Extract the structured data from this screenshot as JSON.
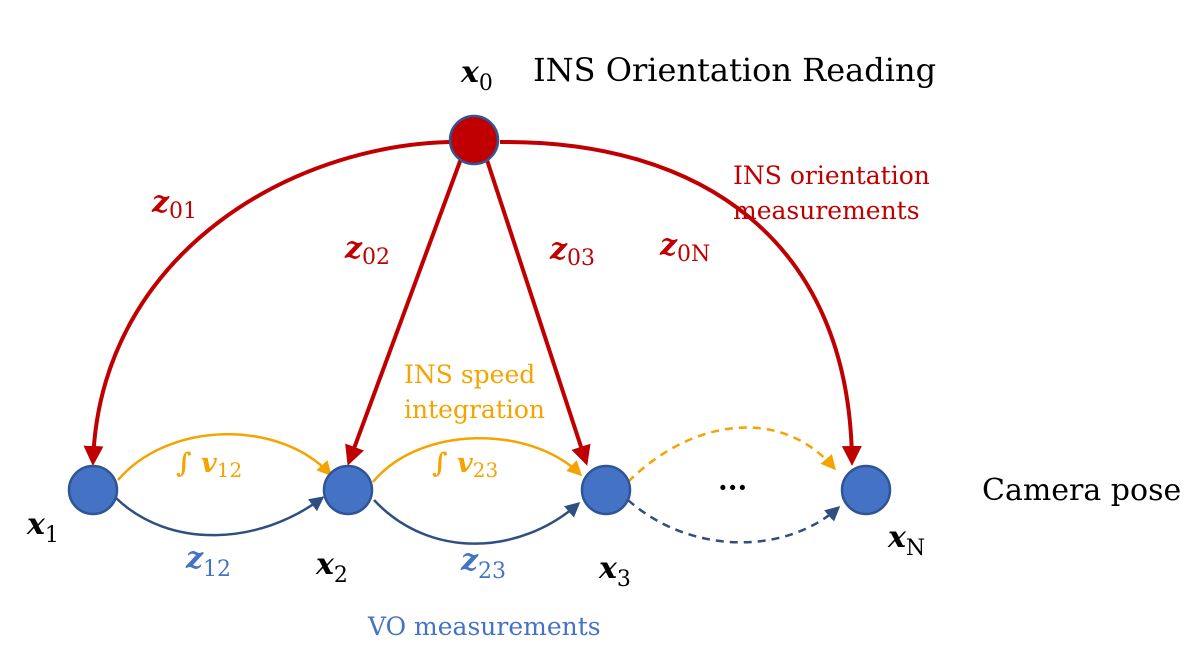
{
  "colors": {
    "red": "#c00000",
    "red_fill": "#c00000",
    "red_stroke": "#2f5597",
    "blue_node": "#4472c4",
    "blue_stroke": "#2f5597",
    "orange": "#f5a300",
    "navy": "#2f4f80",
    "blue_text": "#4472c4",
    "black": "#000000"
  },
  "title": "INS Orientation Reading",
  "labels": {
    "ins_orientation": [
      "INS orientation",
      "measurements"
    ],
    "ins_speed": [
      "INS speed",
      "integration"
    ],
    "vo": "VO measurements",
    "camera_pose": "Camera pose",
    "ellipsis": "···"
  },
  "nodes": [
    {
      "id": "x0",
      "var": "x",
      "sub": "0"
    },
    {
      "id": "x1",
      "var": "x",
      "sub": "1"
    },
    {
      "id": "x2",
      "var": "x",
      "sub": "2"
    },
    {
      "id": "x3",
      "var": "x",
      "sub": "3"
    },
    {
      "id": "xN",
      "var": "x",
      "sub": "N"
    }
  ],
  "edges": {
    "ins_orientation": [
      {
        "var": "z",
        "sub": "01"
      },
      {
        "var": "z",
        "sub": "02"
      },
      {
        "var": "z",
        "sub": "03"
      },
      {
        "var": "z",
        "sub": "0N"
      }
    ],
    "ins_speed": [
      {
        "var": "∫ v",
        "sub": "12"
      },
      {
        "var": "∫ v",
        "sub": "23"
      }
    ],
    "vo": [
      {
        "var": "z",
        "sub": "12"
      },
      {
        "var": "z",
        "sub": "23"
      }
    ]
  }
}
